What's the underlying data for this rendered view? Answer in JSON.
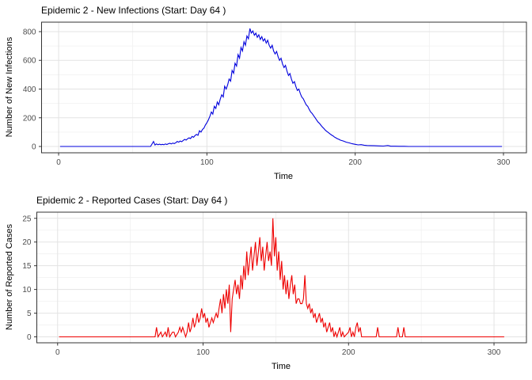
{
  "window": {
    "background": "#ffffff"
  },
  "style": {
    "grid_major_color": "#e3e3e3",
    "grid_minor_color": "#f0f0f0",
    "panel_border_color": "#333333",
    "tick_mark_color": "#333333",
    "tick_label_color": "#4d4d4d",
    "title_color": "#000000"
  },
  "chart_data": [
    {
      "type": "line",
      "title": "Epidemic 2 - New Infections (Start: Day 64 )",
      "xlabel": "Time",
      "ylabel": "Number of New Infections",
      "line_color": "#0000dd",
      "start_day": 64,
      "xlim": [
        -11.5,
        315.5
      ],
      "ylim": [
        -44,
        866
      ],
      "x_ticks": [
        0,
        100,
        200,
        300
      ],
      "x_minor_ticks": [
        50,
        150,
        250
      ],
      "y_ticks": [
        0,
        200,
        400,
        600,
        800
      ],
      "y_minor_ticks": [
        100,
        300,
        500,
        700
      ],
      "grid": "major+minor",
      "legend": "none",
      "points": [
        [
          1,
          0
        ],
        [
          62,
          0
        ],
        [
          64,
          35
        ],
        [
          65,
          10
        ],
        [
          66,
          18
        ],
        [
          67,
          12
        ],
        [
          68,
          16
        ],
        [
          69,
          12
        ],
        [
          70,
          15
        ],
        [
          71,
          12
        ],
        [
          72,
          18
        ],
        [
          73,
          14
        ],
        [
          74,
          19
        ],
        [
          75,
          22
        ],
        [
          76,
          18
        ],
        [
          77,
          24
        ],
        [
          78,
          20
        ],
        [
          79,
          26
        ],
        [
          80,
          35
        ],
        [
          81,
          30
        ],
        [
          82,
          38
        ],
        [
          83,
          33
        ],
        [
          84,
          42
        ],
        [
          85,
          50
        ],
        [
          86,
          44
        ],
        [
          87,
          54
        ],
        [
          88,
          60
        ],
        [
          89,
          55
        ],
        [
          90,
          70
        ],
        [
          91,
          64
        ],
        [
          92,
          76
        ],
        [
          93,
          84
        ],
        [
          94,
          78
        ],
        [
          95,
          110
        ],
        [
          96,
          100
        ],
        [
          97,
          118
        ],
        [
          98,
          128
        ],
        [
          99,
          150
        ],
        [
          100,
          165
        ],
        [
          101,
          185
        ],
        [
          102,
          210
        ],
        [
          103,
          240
        ],
        [
          104,
          225
        ],
        [
          105,
          280
        ],
        [
          106,
          265
        ],
        [
          107,
          310
        ],
        [
          108,
          290
        ],
        [
          109,
          330
        ],
        [
          110,
          360
        ],
        [
          111,
          345
        ],
        [
          112,
          420
        ],
        [
          113,
          400
        ],
        [
          114,
          430
        ],
        [
          115,
          470
        ],
        [
          116,
          455
        ],
        [
          117,
          530
        ],
        [
          118,
          510
        ],
        [
          119,
          580
        ],
        [
          120,
          560
        ],
        [
          121,
          640
        ],
        [
          122,
          615
        ],
        [
          123,
          690
        ],
        [
          124,
          665
        ],
        [
          125,
          730
        ],
        [
          126,
          705
        ],
        [
          127,
          770
        ],
        [
          128,
          750
        ],
        [
          129,
          822
        ],
        [
          130,
          790
        ],
        [
          131,
          805
        ],
        [
          132,
          775
        ],
        [
          133,
          790
        ],
        [
          134,
          760
        ],
        [
          135,
          778
        ],
        [
          136,
          745
        ],
        [
          137,
          765
        ],
        [
          138,
          735
        ],
        [
          139,
          750
        ],
        [
          140,
          720
        ],
        [
          141,
          740
        ],
        [
          142,
          705
        ],
        [
          143,
          685
        ],
        [
          144,
          705
        ],
        [
          145,
          665
        ],
        [
          146,
          645
        ],
        [
          147,
          662
        ],
        [
          148,
          625
        ],
        [
          149,
          600
        ],
        [
          150,
          615
        ],
        [
          151,
          575
        ],
        [
          152,
          550
        ],
        [
          153,
          565
        ],
        [
          154,
          525
        ],
        [
          155,
          495
        ],
        [
          156,
          508
        ],
        [
          157,
          470
        ],
        [
          158,
          440
        ],
        [
          159,
          452
        ],
        [
          160,
          418
        ],
        [
          161,
          390
        ],
        [
          162,
          400
        ],
        [
          163,
          368
        ],
        [
          164,
          344
        ],
        [
          165,
          332
        ],
        [
          166,
          310
        ],
        [
          167,
          290
        ],
        [
          168,
          280
        ],
        [
          169,
          258
        ],
        [
          170,
          240
        ],
        [
          171,
          230
        ],
        [
          172,
          214
        ],
        [
          173,
          200
        ],
        [
          174,
          184
        ],
        [
          175,
          170
        ],
        [
          176,
          160
        ],
        [
          177,
          146
        ],
        [
          178,
          134
        ],
        [
          179,
          124
        ],
        [
          180,
          112
        ],
        [
          181,
          104
        ],
        [
          182,
          96
        ],
        [
          183,
          88
        ],
        [
          184,
          80
        ],
        [
          185,
          74
        ],
        [
          186,
          66
        ],
        [
          187,
          60
        ],
        [
          188,
          54
        ],
        [
          189,
          50
        ],
        [
          190,
          44
        ],
        [
          192,
          38
        ],
        [
          194,
          30
        ],
        [
          196,
          25
        ],
        [
          198,
          19
        ],
        [
          200,
          15
        ],
        [
          202,
          11
        ],
        [
          204,
          13
        ],
        [
          206,
          9
        ],
        [
          208,
          7
        ],
        [
          210,
          6
        ],
        [
          213,
          5
        ],
        [
          216,
          4
        ],
        [
          219,
          3
        ],
        [
          222,
          7
        ],
        [
          224,
          2
        ],
        [
          227,
          2
        ],
        [
          230,
          1
        ],
        [
          233,
          1
        ],
        [
          236,
          0
        ],
        [
          299,
          0
        ]
      ]
    },
    {
      "type": "line",
      "title": "Epidemic 2 - Reported Cases (Start: Day 64 )",
      "xlabel": "Time",
      "ylabel": "Number of Reported Cases",
      "line_color": "#ee0000",
      "start_day": 64,
      "xlim": [
        -14.3,
        322.3
      ],
      "ylim": [
        -1.25,
        26.3
      ],
      "x_ticks": [
        0,
        100,
        200,
        300
      ],
      "x_minor_ticks": [
        50,
        150,
        250
      ],
      "y_ticks": [
        0,
        5,
        10,
        15,
        20,
        25
      ],
      "y_minor_ticks": [
        2.5,
        7.5,
        12.5,
        17.5,
        22.5
      ],
      "grid": "major+minor",
      "legend": "none",
      "points": [
        [
          1,
          0
        ],
        [
          67,
          0
        ],
        [
          68,
          2
        ],
        [
          69,
          0
        ],
        [
          71,
          1
        ],
        [
          72,
          0
        ],
        [
          74,
          1
        ],
        [
          75,
          0
        ],
        [
          76,
          2
        ],
        [
          77,
          0
        ],
        [
          79,
          1
        ],
        [
          80,
          1
        ],
        [
          81,
          0
        ],
        [
          83,
          1
        ],
        [
          84,
          2
        ],
        [
          85,
          1
        ],
        [
          86,
          2
        ],
        [
          87,
          1
        ],
        [
          88,
          0
        ],
        [
          89,
          1
        ],
        [
          90,
          3
        ],
        [
          91,
          1
        ],
        [
          92,
          2
        ],
        [
          93,
          4
        ],
        [
          94,
          2
        ],
        [
          95,
          3
        ],
        [
          96,
          5
        ],
        [
          97,
          3
        ],
        [
          98,
          4
        ],
        [
          99,
          6
        ],
        [
          100,
          4
        ],
        [
          101,
          5
        ],
        [
          102,
          3
        ],
        [
          103,
          4
        ],
        [
          104,
          2
        ],
        [
          105,
          3
        ],
        [
          106,
          4
        ],
        [
          107,
          3
        ],
        [
          108,
          4
        ],
        [
          109,
          5
        ],
        [
          110,
          4
        ],
        [
          111,
          6
        ],
        [
          112,
          8
        ],
        [
          113,
          5
        ],
        [
          114,
          9
        ],
        [
          115,
          6
        ],
        [
          116,
          10
        ],
        [
          117,
          7
        ],
        [
          118,
          11
        ],
        [
          119,
          1
        ],
        [
          120,
          8
        ],
        [
          121,
          10
        ],
        [
          122,
          12
        ],
        [
          123,
          9
        ],
        [
          124,
          11
        ],
        [
          125,
          8
        ],
        [
          126,
          13
        ],
        [
          127,
          10
        ],
        [
          128,
          15
        ],
        [
          129,
          12
        ],
        [
          130,
          18
        ],
        [
          131,
          13
        ],
        [
          132,
          16
        ],
        [
          133,
          19
        ],
        [
          134,
          14
        ],
        [
          135,
          17
        ],
        [
          136,
          20
        ],
        [
          137,
          15
        ],
        [
          138,
          18
        ],
        [
          139,
          21
        ],
        [
          140,
          16
        ],
        [
          141,
          19
        ],
        [
          142,
          14
        ],
        [
          143,
          17
        ],
        [
          144,
          20
        ],
        [
          145,
          16
        ],
        [
          146,
          18
        ],
        [
          147,
          15
        ],
        [
          148,
          25
        ],
        [
          149,
          17
        ],
        [
          150,
          21
        ],
        [
          151,
          14
        ],
        [
          152,
          18
        ],
        [
          153,
          12
        ],
        [
          154,
          16
        ],
        [
          155,
          10
        ],
        [
          156,
          13
        ],
        [
          157,
          9
        ],
        [
          158,
          12
        ],
        [
          159,
          8
        ],
        [
          160,
          11
        ],
        [
          161,
          13
        ],
        [
          162,
          9
        ],
        [
          163,
          11
        ],
        [
          164,
          7
        ],
        [
          165,
          8
        ],
        [
          166,
          8
        ],
        [
          167,
          7
        ],
        [
          168,
          7
        ],
        [
          169,
          8
        ],
        [
          170,
          13
        ],
        [
          171,
          7
        ],
        [
          172,
          6
        ],
        [
          173,
          7
        ],
        [
          174,
          5
        ],
        [
          175,
          6
        ],
        [
          176,
          4
        ],
        [
          177,
          5
        ],
        [
          178,
          3
        ],
        [
          179,
          4
        ],
        [
          180,
          5
        ],
        [
          181,
          3
        ],
        [
          182,
          4
        ],
        [
          183,
          2
        ],
        [
          184,
          3
        ],
        [
          185,
          1
        ],
        [
          186,
          2
        ],
        [
          187,
          3
        ],
        [
          188,
          1
        ],
        [
          189,
          2
        ],
        [
          190,
          0
        ],
        [
          191,
          1
        ],
        [
          192,
          0
        ],
        [
          193,
          1
        ],
        [
          194,
          2
        ],
        [
          195,
          0
        ],
        [
          196,
          1
        ],
        [
          197,
          0
        ],
        [
          200,
          1
        ],
        [
          201,
          2
        ],
        [
          202,
          0
        ],
        [
          203,
          1
        ],
        [
          204,
          0
        ],
        [
          205,
          2
        ],
        [
          206,
          3
        ],
        [
          207,
          1
        ],
        [
          208,
          2
        ],
        [
          209,
          0
        ],
        [
          219,
          0
        ],
        [
          220,
          2
        ],
        [
          221,
          0
        ],
        [
          233,
          0
        ],
        [
          234,
          2
        ],
        [
          235,
          0
        ],
        [
          237,
          0
        ],
        [
          238,
          2
        ],
        [
          239,
          0
        ],
        [
          307,
          0
        ]
      ]
    }
  ]
}
